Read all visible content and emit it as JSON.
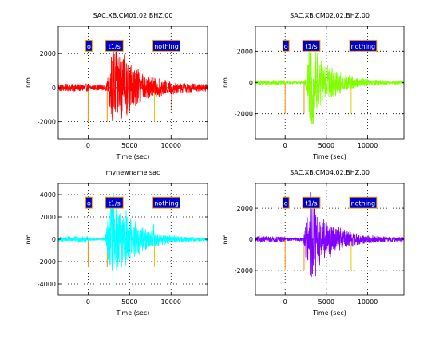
{
  "chart_data": [
    {
      "type": "line",
      "title": "SAC.XB.CM01.02.BHZ.00",
      "xlabel": "Time (sec)",
      "ylabel": "nm",
      "xlim": [
        -3600,
        14400
      ],
      "ylim": [
        -3000,
        3600
      ],
      "xticks": [
        0,
        5000,
        10000
      ],
      "yticks": [
        -2000,
        0,
        2000
      ],
      "grid": true,
      "trace_color": "#ff0000",
      "waveform": {
        "onset": 2200,
        "peak_time": 3100,
        "peak_amplitude": 2900,
        "coda_amplitude": 700,
        "decay": 2500,
        "noise_amplitude": 160,
        "pre_event_amplitude": 220,
        "tail_amplitude": 180,
        "spikes": [
          {
            "t": 10100,
            "amplitude": -1300
          }
        ]
      },
      "markers": [
        {
          "label": "o",
          "t": 0,
          "end": -2000,
          "line_color": "#ff8c00"
        },
        {
          "label": "t1/s",
          "t": 2300,
          "end": -2000,
          "line_color": "#ff8c00"
        },
        {
          "label": "nothing",
          "t": 8000,
          "end": -2000,
          "line_color": "#e8c800"
        }
      ]
    },
    {
      "type": "line",
      "title": "SAC.XB.CM02.02.BHZ.00",
      "xlabel": "Time (sec)",
      "ylabel": "nm",
      "xlim": [
        -3600,
        14400
      ],
      "ylim": [
        -3600,
        3600
      ],
      "xticks": [
        0,
        5000,
        10000
      ],
      "yticks": [
        -2000,
        0,
        2000
      ],
      "grid": true,
      "trace_color": "#80ff00",
      "waveform": {
        "onset": 2300,
        "peak_time": 3000,
        "peak_amplitude": 2800,
        "coda_amplitude": 650,
        "decay": 2300,
        "noise_amplitude": 90,
        "pre_event_amplitude": 150,
        "tail_amplitude": 90,
        "spikes": []
      },
      "markers": [
        {
          "label": "o",
          "t": 0,
          "end": -2000,
          "line_color": "#ff8c00"
        },
        {
          "label": "t1/s",
          "t": 2300,
          "end": -2000,
          "line_color": "#ff8c00"
        },
        {
          "label": "nothing",
          "t": 8000,
          "end": -2000,
          "line_color": "#e8c800"
        }
      ]
    },
    {
      "type": "line",
      "title": "mynewname.sac",
      "xlabel": "Time (sec)",
      "ylabel": "nm",
      "xlim": [
        -3600,
        14400
      ],
      "ylim": [
        -5000,
        5000
      ],
      "xticks": [
        0,
        5000,
        10000
      ],
      "yticks": [
        -4000,
        -2000,
        0,
        2000,
        4000
      ],
      "grid": true,
      "trace_color": "#00ffff",
      "waveform": {
        "onset": 2000,
        "peak_time": 3000,
        "peak_amplitude": 4700,
        "coda_amplitude": 1000,
        "decay": 2300,
        "noise_amplitude": 120,
        "pre_event_amplitude": 260,
        "tail_amplitude": 120,
        "spikes": [
          {
            "t": 7900,
            "amplitude": 1300
          }
        ]
      },
      "markers": [
        {
          "label": "o",
          "t": 0,
          "end": -2500,
          "line_color": "#ff8c00"
        },
        {
          "label": "t1/s",
          "t": 2300,
          "end": -2500,
          "line_color": "#ff8c00"
        },
        {
          "label": "nothing",
          "t": 8000,
          "end": -2500,
          "line_color": "#e8c800"
        }
      ]
    },
    {
      "type": "line",
      "title": "SAC.XB.CM04.02.BHZ.00",
      "xlabel": "Time (sec)",
      "ylabel": "nm",
      "xlim": [
        -3600,
        14400
      ],
      "ylim": [
        -3600,
        3600
      ],
      "xticks": [
        0,
        5000,
        10000
      ],
      "yticks": [
        -2000,
        0,
        2000
      ],
      "grid": true,
      "trace_color": "#8000ff",
      "waveform": {
        "onset": 2200,
        "peak_time": 3000,
        "peak_amplitude": 3100,
        "coda_amplitude": 600,
        "decay": 2300,
        "noise_amplitude": 110,
        "pre_event_amplitude": 180,
        "tail_amplitude": 110,
        "spikes": []
      },
      "markers": [
        {
          "label": "o",
          "t": 0,
          "end": -2000,
          "line_color": "#ff8c00"
        },
        {
          "label": "t1/s",
          "t": 2300,
          "end": -2000,
          "line_color": "#ff8c00"
        },
        {
          "label": "nothing",
          "t": 8000,
          "end": -2000,
          "line_color": "#e8c800"
        }
      ]
    }
  ],
  "style": {
    "marker_box_fill": "#0000cc",
    "marker_box_border": "#ffa500",
    "marker_text_color": "#ffffff",
    "grid_color": "#000000",
    "axis_color": "#000000"
  }
}
